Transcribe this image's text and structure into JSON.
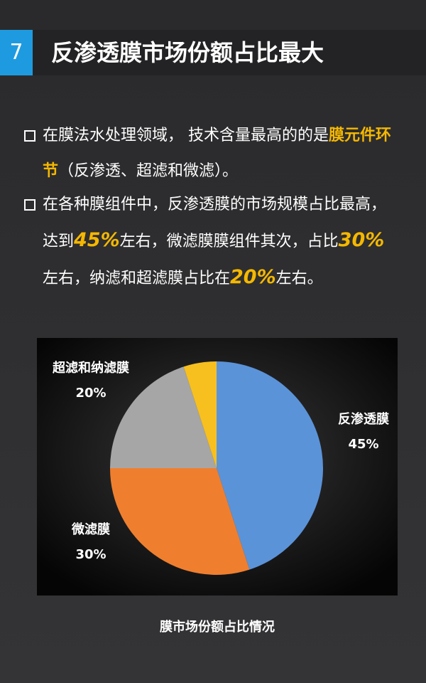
{
  "header": {
    "number": "7",
    "title": "反渗透膜市场份额占比最大"
  },
  "bullets": [
    [
      {
        "text": "在膜法水处理领域， 技术含量最高的的是"
      },
      {
        "text": "膜元件环节",
        "em": "bold"
      },
      {
        "text": "（反渗透、超滤和微滤）。"
      }
    ],
    [
      {
        "text": "在各种膜组件中，反渗透膜的市场规模占比最高，达到"
      },
      {
        "text": "45%",
        "em": "number"
      },
      {
        "text": "左右，微滤膜膜组件其次，占比"
      },
      {
        "text": "30%",
        "em": "number"
      },
      {
        "text": "左右，纳滤和超滤膜占比在"
      },
      {
        "text": "20%",
        "em": "number"
      },
      {
        "text": "左右。"
      }
    ]
  ],
  "chart_data": {
    "type": "pie",
    "title": "膜市场份额占比情况",
    "categories": [
      "反渗透膜",
      "微滤膜",
      "超滤和纳滤膜",
      null
    ],
    "values": [
      45,
      30,
      20,
      5
    ],
    "value_labels": [
      "45%",
      "30%",
      "20%",
      null
    ],
    "colors": [
      "#5b93d8",
      "#ef7f2f",
      "#a6a6a6",
      "#f7c01e"
    ]
  }
}
